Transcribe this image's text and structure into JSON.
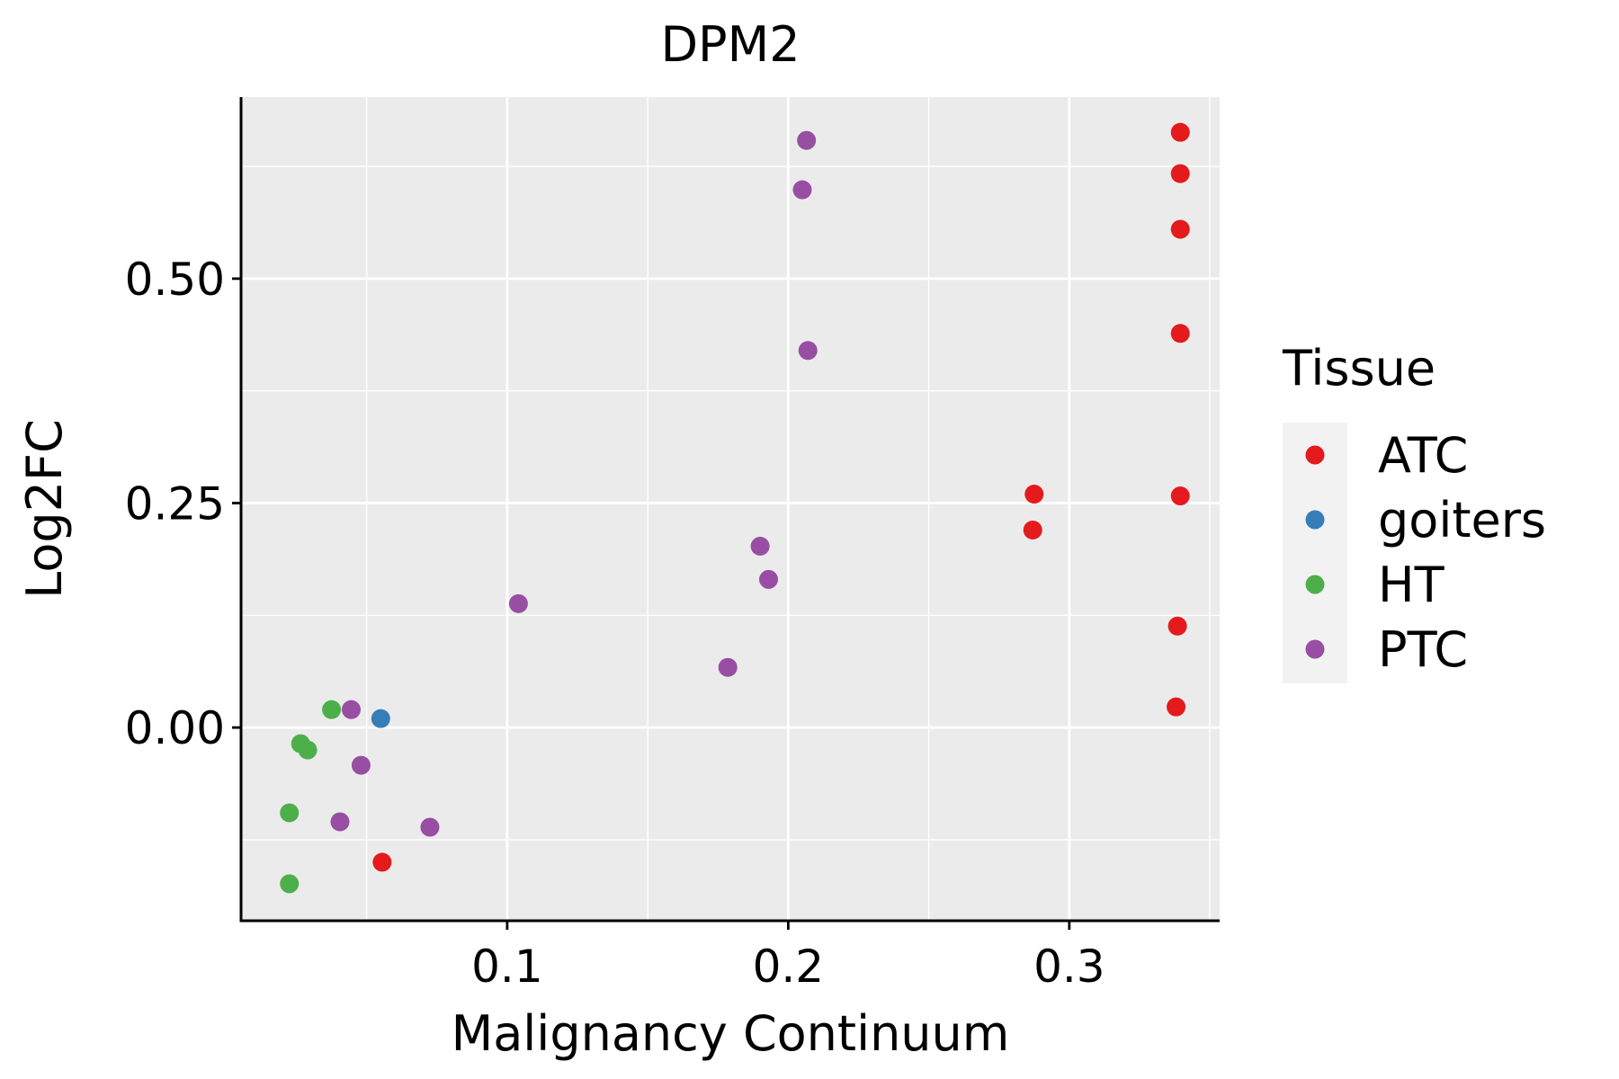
{
  "chart_data": {
    "type": "scatter",
    "title": "DPM2",
    "xlabel": "Malignancy Continuum",
    "ylabel": "Log2FC",
    "xlim": [
      0.0053,
      0.3535
    ],
    "ylim": [
      -0.2152,
      0.7022
    ],
    "x_ticks": [
      0.1,
      0.2,
      0.3
    ],
    "x_tick_labels": [
      "0.1",
      "0.2",
      "0.3"
    ],
    "x_minor": [
      0.05,
      0.15,
      0.25,
      0.35
    ],
    "y_ticks": [
      0.0,
      0.25,
      0.5
    ],
    "y_tick_labels": [
      "0.00",
      "0.25",
      "0.50"
    ],
    "y_minor": [
      -0.125,
      0.125,
      0.375,
      0.625
    ],
    "grid": true,
    "legend": {
      "title": "Tissue",
      "position": "right",
      "entries": [
        {
          "label": "ATC",
          "color": "#E41A1C"
        },
        {
          "label": "goiters",
          "color": "#377EB8"
        },
        {
          "label": "HT",
          "color": "#4DAF4A"
        },
        {
          "label": "PTC",
          "color": "#984EA3"
        }
      ]
    },
    "series": [
      {
        "name": "ATC",
        "color": "#E41A1C",
        "points": [
          {
            "x": 0.3395,
            "y": 0.663
          },
          {
            "x": 0.3395,
            "y": 0.617
          },
          {
            "x": 0.3395,
            "y": 0.555
          },
          {
            "x": 0.3395,
            "y": 0.439
          },
          {
            "x": 0.3395,
            "y": 0.258
          },
          {
            "x": 0.2875,
            "y": 0.26
          },
          {
            "x": 0.287,
            "y": 0.22
          },
          {
            "x": 0.3385,
            "y": 0.113
          },
          {
            "x": 0.338,
            "y": 0.023
          },
          {
            "x": 0.0555,
            "y": -0.15
          }
        ]
      },
      {
        "name": "goiters",
        "color": "#377EB8",
        "points": [
          {
            "x": 0.055,
            "y": 0.01
          }
        ]
      },
      {
        "name": "HT",
        "color": "#4DAF4A",
        "points": [
          {
            "x": 0.0375,
            "y": 0.02
          },
          {
            "x": 0.0265,
            "y": -0.018
          },
          {
            "x": 0.029,
            "y": -0.025
          },
          {
            "x": 0.0225,
            "y": -0.095
          },
          {
            "x": 0.0225,
            "y": -0.174
          }
        ]
      },
      {
        "name": "PTC",
        "color": "#984EA3",
        "points": [
          {
            "x": 0.2065,
            "y": 0.654
          },
          {
            "x": 0.205,
            "y": 0.599
          },
          {
            "x": 0.207,
            "y": 0.42
          },
          {
            "x": 0.19,
            "y": 0.202
          },
          {
            "x": 0.193,
            "y": 0.165
          },
          {
            "x": 0.104,
            "y": 0.138
          },
          {
            "x": 0.1785,
            "y": 0.067
          },
          {
            "x": 0.0445,
            "y": 0.02
          },
          {
            "x": 0.048,
            "y": -0.042
          },
          {
            "x": 0.0405,
            "y": -0.105
          },
          {
            "x": 0.0725,
            "y": -0.111
          }
        ]
      }
    ]
  }
}
